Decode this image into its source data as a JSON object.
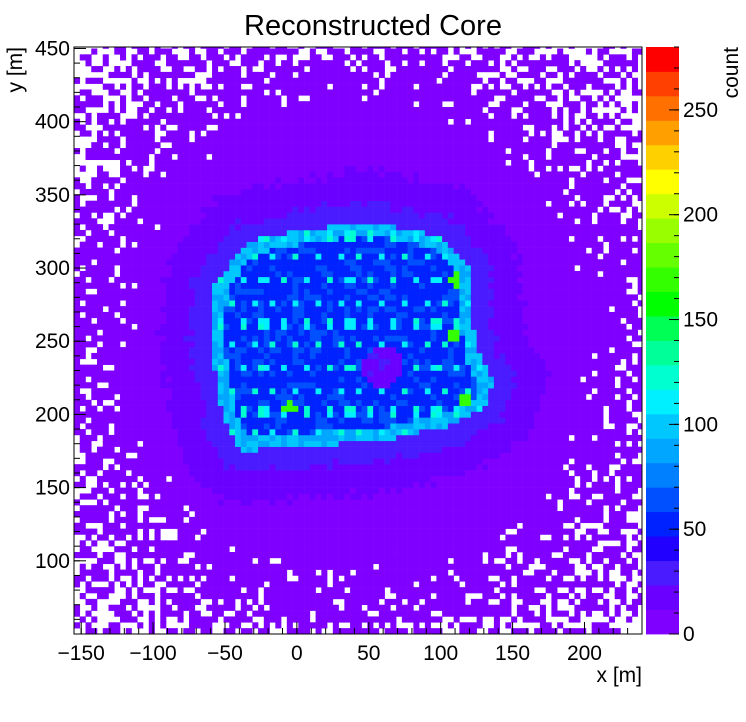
{
  "chart_data": {
    "type": "heatmap",
    "title": "Reconstructed Core",
    "xlabel": "x [m]",
    "ylabel": "y [m]",
    "zlabel": "count",
    "xlim": [
      -155,
      240
    ],
    "ylim": [
      50,
      451
    ],
    "zlim": [
      0,
      280
    ],
    "x_ticks": [
      -150,
      -100,
      -50,
      0,
      50,
      100,
      150,
      200
    ],
    "y_ticks": [
      100,
      150,
      200,
      250,
      300,
      350,
      400,
      450
    ],
    "z_ticks": [
      0,
      50,
      100,
      150,
      200,
      250
    ],
    "x_tick_labels": [
      "−150",
      "−100",
      "−50",
      "0",
      "50",
      "100",
      "150",
      "200"
    ],
    "y_tick_labels": [
      "100",
      "150",
      "200",
      "250",
      "300",
      "350",
      "400",
      "450"
    ],
    "z_tick_labels": [
      "0",
      "50",
      "100",
      "150",
      "200",
      "250"
    ],
    "palette": [
      "#8000ff",
      "#6a00ff",
      "#4b1bff",
      "#2200ff",
      "#0022ff",
      "#0050ff",
      "#0080ff",
      "#00a6ff",
      "#00c8ff",
      "#00f0ff",
      "#00ffd0",
      "#00ff99",
      "#00ff55",
      "#00ff00",
      "#33ff00",
      "#66ff00",
      "#99ff00",
      "#ccff00",
      "#ffff00",
      "#ffd000",
      "#ffa000",
      "#ff7000",
      "#ff4000",
      "#ff0000"
    ],
    "description_of_distribution": {
      "background_count_approx": 3,
      "core_region_polygon": [
        [
          -57,
          288
        ],
        [
          -35,
          318
        ],
        [
          0,
          325
        ],
        [
          50,
          332
        ],
        [
          100,
          322
        ],
        [
          120,
          300
        ],
        [
          122,
          262
        ],
        [
          128,
          236
        ],
        [
          137,
          225
        ],
        [
          132,
          206
        ],
        [
          105,
          192
        ],
        [
          60,
          182
        ],
        [
          0,
          178
        ],
        [
          -40,
          175
        ],
        [
          -52,
          200
        ],
        [
          -60,
          250
        ]
      ],
      "core_region_count_approx": 55,
      "edge_count_approx": 95,
      "detector_spot_count_approx": 115,
      "detector_spot_spacing_m": 15,
      "hot_spots": [
        [
          110,
          292
        ],
        [
          108,
          255
        ],
        [
          118,
          210
        ],
        [
          -5,
          205
        ]
      ],
      "hot_spot_count_approx": 170,
      "hole_center": [
        60,
        233
      ],
      "hole_radius_m": 14
    }
  }
}
